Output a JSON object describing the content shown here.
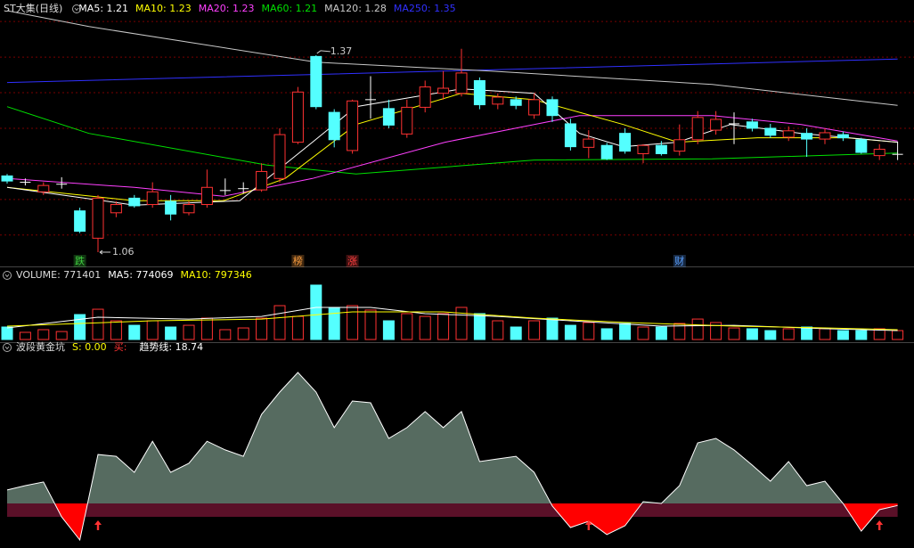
{
  "chart_data": [
    {
      "type": "candlestick",
      "title": "ST大集(日线)",
      "open": [
        1.18,
        1.17,
        1.155,
        1.167,
        1.125,
        1.082,
        1.122,
        1.145,
        1.135,
        1.14,
        1.122,
        1.135,
        1.157,
        1.16,
        1.158,
        1.176,
        1.233,
        1.368,
        1.28,
        1.22,
        1.3,
        1.286,
        1.246,
        1.288,
        1.31,
        1.31,
        1.33,
        1.293,
        1.3,
        1.276,
        1.3,
        1.262,
        1.225,
        1.228,
        1.247,
        1.215,
        1.228,
        1.219,
        1.237,
        1.252,
        1.262,
        1.265,
        1.255,
        1.241,
        1.247,
        1.238,
        1.245,
        1.237,
        1.212,
        1.214
      ],
      "high": [
        1.183,
        1.176,
        1.17,
        1.178,
        1.13,
        1.15,
        1.14,
        1.15,
        1.17,
        1.15,
        1.14,
        1.19,
        1.176,
        1.17,
        1.2,
        1.255,
        1.32,
        1.37,
        1.285,
        1.3,
        1.337,
        1.3,
        1.3,
        1.33,
        1.345,
        1.38,
        1.335,
        1.31,
        1.305,
        1.31,
        1.305,
        1.27,
        1.252,
        1.232,
        1.255,
        1.23,
        1.235,
        1.261,
        1.282,
        1.282,
        1.28,
        1.27,
        1.262,
        1.258,
        1.255,
        1.255,
        1.25,
        1.24,
        1.23,
        1.234
      ],
      "low": [
        1.168,
        1.165,
        1.15,
        1.16,
        1.09,
        1.06,
        1.115,
        1.13,
        1.13,
        1.11,
        1.118,
        1.13,
        1.15,
        1.152,
        1.155,
        1.17,
        1.23,
        1.285,
        1.225,
        1.215,
        1.27,
        1.255,
        1.24,
        1.28,
        1.3,
        1.305,
        1.285,
        1.285,
        1.285,
        1.27,
        1.265,
        1.22,
        1.208,
        1.205,
        1.215,
        1.2,
        1.212,
        1.212,
        1.23,
        1.245,
        1.23,
        1.25,
        1.24,
        1.235,
        1.21,
        1.23,
        1.235,
        1.215,
        1.205,
        1.205
      ],
      "close": [
        1.172,
        1.17,
        1.165,
        1.167,
        1.093,
        1.145,
        1.135,
        1.133,
        1.155,
        1.12,
        1.135,
        1.162,
        1.157,
        1.16,
        1.187,
        1.245,
        1.312,
        1.289,
        1.237,
        1.298,
        1.3,
        1.26,
        1.288,
        1.32,
        1.318,
        1.342,
        1.292,
        1.304,
        1.291,
        1.3,
        1.275,
        1.226,
        1.238,
        1.207,
        1.219,
        1.228,
        1.215,
        1.237,
        1.272,
        1.269,
        1.262,
        1.255,
        1.244,
        1.251,
        1.238,
        1.248,
        1.24,
        1.217,
        1.222,
        1.214
      ],
      "up_color": "#ff3232",
      "down_color": "#54ffff",
      "flat_color": "#ffffff",
      "ylim": [
        1.039,
        1.44
      ],
      "yticks": [
        1.423,
        1.367,
        1.311,
        1.255,
        1.199,
        1.143,
        1.087
      ],
      "grid_color": "#7a0000",
      "series": [
        {
          "name": "MA5",
          "color": "#ffffff",
          "last": 1.21,
          "x": [
            0,
            7,
            12.8,
            16.8,
            19.2,
            25,
            29,
            31.5,
            33.9,
            36.9,
            39.8,
            43.7,
            49
          ],
          "values": [
            1.162,
            1.134,
            1.141,
            1.233,
            1.289,
            1.317,
            1.31,
            1.247,
            1.226,
            1.233,
            1.261,
            1.247,
            1.233
          ]
        },
        {
          "name": "MA10",
          "color": "#ffff00",
          "last": 1.23,
          "x": [
            0,
            7,
            11.9,
            15.3,
            19.2,
            25,
            29,
            33.9,
            36.9,
            41.3,
            46.2,
            49
          ],
          "values": [
            1.162,
            1.141,
            1.141,
            1.176,
            1.261,
            1.31,
            1.3,
            1.261,
            1.233,
            1.24,
            1.24,
            1.233
          ]
        },
        {
          "name": "MA20",
          "color": "#ff40ff",
          "last": 1.23,
          "x": [
            0,
            7,
            11.9,
            16.8,
            24.1,
            29,
            31.5,
            38.8,
            43.7,
            49
          ],
          "values": [
            1.176,
            1.162,
            1.148,
            1.176,
            1.233,
            1.261,
            1.275,
            1.275,
            1.261,
            1.235
          ]
        },
        {
          "name": "MA60",
          "color": "#00e000",
          "last": 1.21,
          "x": [
            0,
            4.5,
            14.3,
            19.2,
            29,
            38.8,
            49
          ],
          "values": [
            1.289,
            1.247,
            1.197,
            1.183,
            1.205,
            1.207,
            1.216
          ]
        },
        {
          "name": "MA120",
          "color": "#c8c8c8",
          "last": 1.28,
          "x": [
            0,
            4.5,
            17,
            26.6,
            38.8,
            49
          ],
          "values": [
            1.44,
            1.415,
            1.359,
            1.345,
            1.324,
            1.291
          ]
        },
        {
          "name": "MA250",
          "color": "#3030ff",
          "last": 1.35,
          "x": [
            0,
            24,
            49
          ],
          "values": [
            1.327,
            1.345,
            1.364
          ]
        }
      ],
      "annotations": [
        {
          "x": 17,
          "value": 1.37
        },
        {
          "x": 5,
          "value": 1.06
        }
      ],
      "events": [
        {
          "label": "跌",
          "x": 4,
          "color": "#40d040"
        },
        {
          "label": "榜",
          "x": 16,
          "color": "#ffa040"
        },
        {
          "label": "涨",
          "x": 19,
          "color": "#ff4040"
        },
        {
          "label": "财",
          "x": 37,
          "color": "#5aa0ff"
        }
      ]
    },
    {
      "type": "volume",
      "title": "VOLUME",
      "values": [
        1080000,
        620000,
        850000,
        690000,
        2160000,
        2620000,
        1620000,
        1230000,
        1620000,
        1080000,
        1230000,
        1850000,
        850000,
        1000000,
        1850000,
        2930000,
        2000000,
        4710000,
        2780000,
        2930000,
        2550000,
        1620000,
        2240000,
        2000000,
        2240000,
        2780000,
        2240000,
        1620000,
        1080000,
        1620000,
        1850000,
        1230000,
        1470000,
        930000,
        1390000,
        1080000,
        1080000,
        1390000,
        1770000,
        1470000,
        1000000,
        930000,
        770000,
        930000,
        1080000,
        930000,
        770000,
        770000,
        930000,
        771401
      ],
      "ylim": [
        0,
        6250000
      ],
      "series": [
        {
          "name": "MA5",
          "color": "#ffffff",
          "last": 774069,
          "x": [
            0,
            5,
            10,
            14,
            17,
            20,
            23,
            27,
            31,
            36,
            40,
            45,
            49
          ],
          "values": [
            1000000,
            1930000,
            1770000,
            2000000,
            2780000,
            2780000,
            2240000,
            2000000,
            1620000,
            1160000,
            1230000,
            930000,
            770000
          ]
        },
        {
          "name": "MA10",
          "color": "#ffff00",
          "last": 797346,
          "x": [
            0,
            8,
            14,
            19,
            24,
            29,
            34,
            40,
            45,
            49
          ],
          "values": [
            1160000,
            1620000,
            1770000,
            2390000,
            2390000,
            1850000,
            1470000,
            1160000,
            1000000,
            850000
          ]
        }
      ]
    },
    {
      "type": "area",
      "title": "波段黄金坑",
      "signal": {
        "name": "S",
        "label": "0.00",
        "color": "#ffff00"
      },
      "buy": {
        "name": "买",
        "color": "#ff3232",
        "x": [
          5,
          32,
          48
        ]
      },
      "ylim": [
        -7.2,
        112.5
      ],
      "baseline": 20,
      "fill_color": "#566b60",
      "negative_color": "#ff0000",
      "band_color": "#5a1028",
      "series": [
        {
          "name": "趋势线",
          "color": "#ffffff",
          "values": [
            28.2,
            30.9,
            33.1,
            11.8,
            -2.3,
            49.9,
            48.8,
            39.0,
            58.0,
            39.0,
            44.5,
            58.0,
            52.7,
            48.8,
            74.4,
            88.0,
            100,
            88.0,
            66.3,
            82.6,
            81.5,
            59.7,
            66.3,
            76.1,
            66.3,
            76.1,
            45.6,
            47.2,
            48.8,
            39.0,
            18.4,
            5.3,
            9.1,
            1.0,
            6.4,
            21.1,
            20,
            30.9,
            57.0,
            59.7,
            52.7,
            43.4,
            33.6,
            45.6,
            30.9,
            33.6,
            20,
            3.1,
            16.2,
            18.74
          ]
        }
      ]
    }
  ]
}
